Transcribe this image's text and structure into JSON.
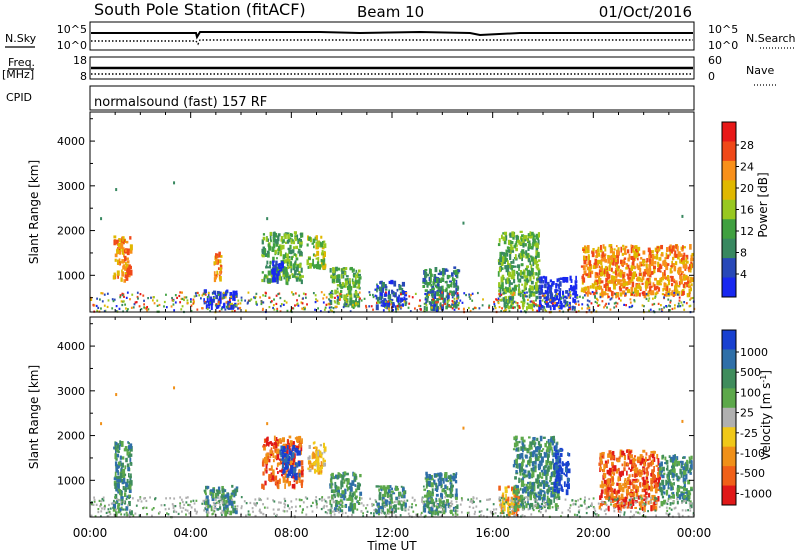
{
  "header": {
    "title": "South Pole Station (fitACF)",
    "beam": "Beam 10",
    "date": "01/Oct/2016"
  },
  "noise_panel": {
    "left_label": "N.Sky",
    "right_label": "N.Search",
    "left_ticks": [
      "10^5",
      "10^0"
    ],
    "right_ticks": [
      "10^5",
      "10^0"
    ]
  },
  "freq_panel": {
    "left_label": "Freq.",
    "left_unit": "[MHz]",
    "right_label": "Nave",
    "left_ticks": [
      "18",
      "8"
    ],
    "right_ticks": [
      "60",
      "0"
    ]
  },
  "cpid_panel": {
    "label": "CPID",
    "mode_text": "normalsound (fast) 157 RF"
  },
  "x_axis": {
    "label": "Time UT",
    "ticks": [
      "00:00",
      "04:00",
      "08:00",
      "12:00",
      "16:00",
      "20:00",
      "00:00"
    ]
  },
  "power_colorbar": {
    "title": "Power [dB]",
    "labels": [
      "28",
      "24",
      "20",
      "16",
      "12",
      "8",
      "4"
    ],
    "colors": [
      "#e81818",
      "#f04818",
      "#f8901a",
      "#e0b800",
      "#98c820",
      "#40a040",
      "#388860",
      "#2848b8",
      "#1828f0"
    ]
  },
  "velocity_colorbar": {
    "title": "Velocity [m s^-1]",
    "labels": [
      "1000",
      "500",
      "100",
      "25",
      "-25",
      "-100",
      "-500",
      "-1000"
    ],
    "colors": [
      "#1840d0",
      "#2f6fa8",
      "#3f8c5c",
      "#5ca84a",
      "#b0b0b0",
      "#f0c818",
      "#f09018",
      "#f06018",
      "#e01818"
    ]
  },
  "chart_data": [
    {
      "type": "heatmap",
      "title": "Power",
      "ylabel": "Slant Range [km]",
      "xlabel": "Time UT",
      "yticks": [
        1000,
        2000,
        3000,
        4000
      ],
      "ylim": [
        180,
        4650
      ],
      "xlim_hours": [
        0,
        24
      ],
      "colorbar_label": "Power [dB]",
      "clusters": [
        {
          "t0": 0.9,
          "t1": 1.6,
          "r0": 900,
          "r1": 1900,
          "level": 2
        },
        {
          "t0": 4.5,
          "t1": 5.8,
          "r0": 300,
          "r1": 700,
          "level": 8
        },
        {
          "t0": 4.9,
          "t1": 5.2,
          "r0": 900,
          "r1": 1600,
          "level": 2
        },
        {
          "t0": 6.8,
          "t1": 8.4,
          "r0": 900,
          "r1": 2000,
          "level": 5
        },
        {
          "t0": 7.2,
          "t1": 7.6,
          "r0": 900,
          "r1": 1400,
          "level": 8
        },
        {
          "t0": 8.6,
          "t1": 9.3,
          "r0": 1200,
          "r1": 1900,
          "level": 4
        },
        {
          "t0": 9.5,
          "t1": 10.7,
          "r0": 350,
          "r1": 1200,
          "level": 5
        },
        {
          "t0": 11.3,
          "t1": 12.5,
          "r0": 300,
          "r1": 900,
          "level": 7
        },
        {
          "t0": 13.2,
          "t1": 14.6,
          "r0": 300,
          "r1": 1200,
          "level": 6
        },
        {
          "t0": 16.2,
          "t1": 17.8,
          "r0": 300,
          "r1": 2000,
          "level": 5
        },
        {
          "t0": 17.8,
          "t1": 19.3,
          "r0": 300,
          "r1": 1000,
          "level": 8
        },
        {
          "t0": 19.5,
          "t1": 23.9,
          "r0": 600,
          "r1": 1700,
          "level": 2
        }
      ]
    },
    {
      "type": "heatmap",
      "title": "Velocity",
      "ylabel": "Slant Range [km]",
      "xlabel": "Time UT",
      "yticks": [
        1000,
        2000,
        3000,
        4000
      ],
      "ylim": [
        180,
        4650
      ],
      "xlim_hours": [
        0,
        24
      ],
      "colorbar_label": "Velocity [m s^-1]",
      "clusters": [
        {
          "t0": 0.9,
          "t1": 1.6,
          "r0": 300,
          "r1": 1900,
          "level": 2
        },
        {
          "t0": 4.5,
          "t1": 5.8,
          "r0": 300,
          "r1": 900,
          "level": 2
        },
        {
          "t0": 6.8,
          "t1": 8.4,
          "r0": 900,
          "r1": 2000,
          "level": 7
        },
        {
          "t0": 7.5,
          "t1": 8.3,
          "r0": 1100,
          "r1": 1800,
          "level": 0
        },
        {
          "t0": 8.6,
          "t1": 9.3,
          "r0": 1200,
          "r1": 1900,
          "level": 5
        },
        {
          "t0": 9.5,
          "t1": 10.7,
          "r0": 350,
          "r1": 1200,
          "level": 2
        },
        {
          "t0": 11.3,
          "t1": 12.5,
          "r0": 300,
          "r1": 900,
          "level": 2
        },
        {
          "t0": 13.2,
          "t1": 14.6,
          "r0": 300,
          "r1": 1200,
          "level": 2
        },
        {
          "t0": 16.2,
          "t1": 17.0,
          "r0": 300,
          "r1": 900,
          "level": 6
        },
        {
          "t0": 16.8,
          "t1": 18.6,
          "r0": 400,
          "r1": 2000,
          "level": 2
        },
        {
          "t0": 18.4,
          "t1": 19.0,
          "r0": 800,
          "r1": 1800,
          "level": 0
        },
        {
          "t0": 20.2,
          "t1": 22.6,
          "r0": 400,
          "r1": 1700,
          "level": 7
        },
        {
          "t0": 22.6,
          "t1": 23.9,
          "r0": 500,
          "r1": 1600,
          "level": 2
        }
      ]
    }
  ]
}
